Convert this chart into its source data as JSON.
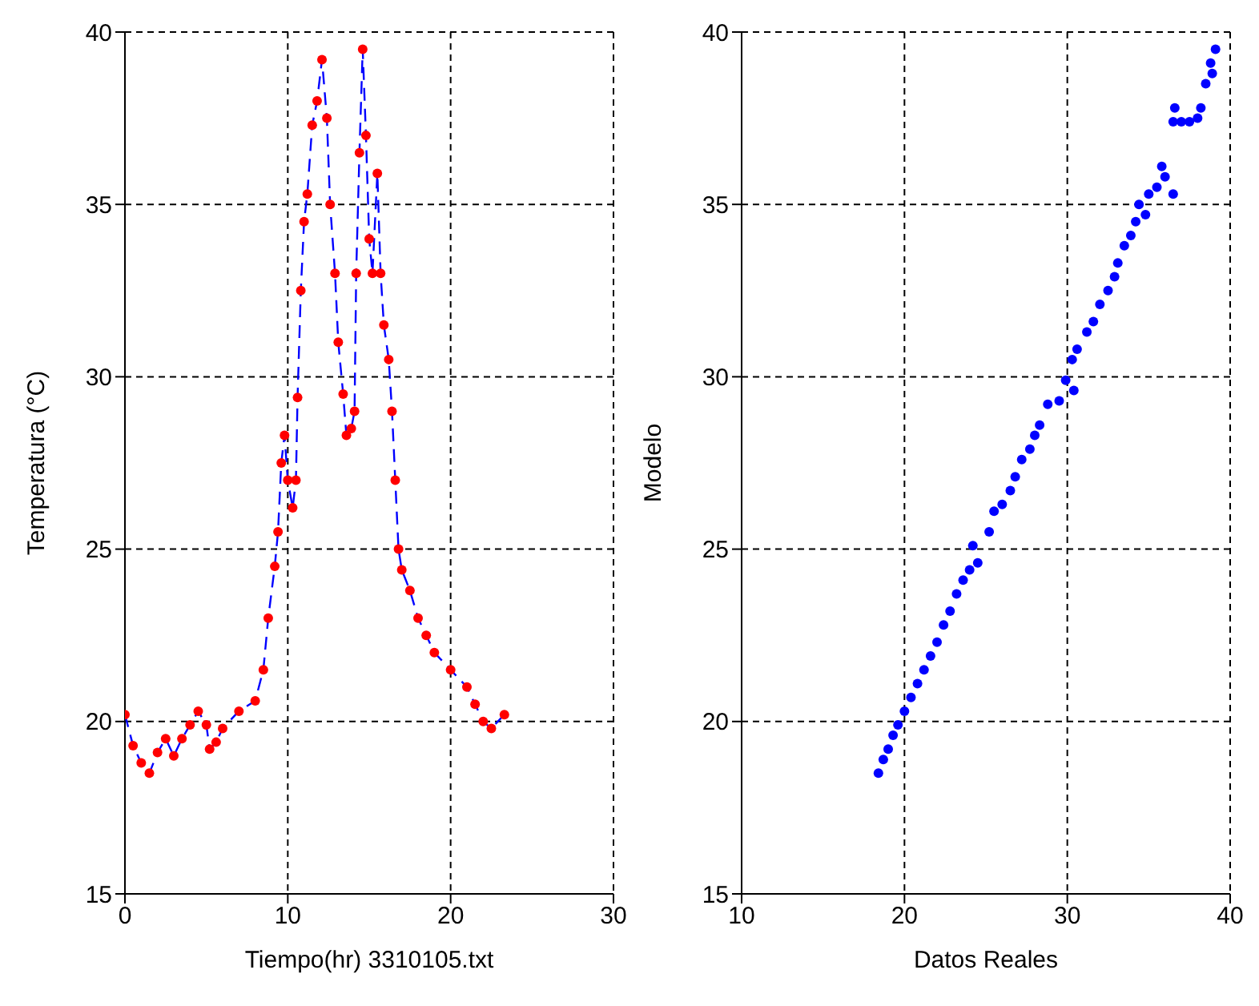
{
  "chart_data": [
    {
      "type": "scatter",
      "xlabel": "Tiempo(hr) 3310105.txt",
      "ylabel": "Temperatura      (°C)",
      "xlim": [
        0,
        30
      ],
      "xticks": [
        0,
        10,
        20,
        30
      ],
      "ylim": [
        15,
        40
      ],
      "yticks": [
        15,
        20,
        25,
        30,
        35,
        40
      ],
      "grid": true,
      "legend": false,
      "series": [
        {
          "type": "line",
          "color": "#0000ff",
          "line_style": "dashed",
          "marker": "none",
          "x": [
            0,
            0.5,
            1,
            1.5,
            2,
            2.5,
            3,
            3.5,
            4,
            4.5,
            5,
            5.2,
            5.6,
            6,
            7,
            8,
            8.5,
            8.8,
            9.2,
            9.4,
            9.6,
            9.8,
            10,
            10.3,
            10.5,
            10.6,
            10.8,
            11,
            11.2,
            11.5,
            11.8,
            12.1,
            12.4,
            12.6,
            12.9,
            13.1,
            13.4,
            13.6,
            13.9,
            14.1,
            14.2,
            14.4,
            14.6,
            14.8,
            15,
            15.2,
            15.5,
            15.7,
            15.9,
            16.2,
            16.4,
            16.6,
            16.8,
            17,
            17.5,
            18,
            18.5,
            19,
            20,
            21,
            21.5,
            22,
            22.5,
            23.3
          ],
          "values": [
            20.2,
            19.3,
            18.8,
            18.5,
            19.1,
            19.5,
            19.0,
            19.5,
            19.9,
            20.3,
            19.9,
            19.2,
            19.4,
            19.8,
            20.3,
            20.6,
            21.5,
            23,
            24.5,
            25.5,
            27.5,
            28.3,
            27,
            26.2,
            27,
            29.4,
            32.5,
            34.5,
            35.3,
            37.3,
            38,
            39.2,
            37.5,
            35,
            33,
            31,
            29.5,
            28.3,
            28.5,
            29,
            33,
            36.5,
            39.5,
            37,
            34,
            33,
            35.9,
            33,
            31.5,
            30.5,
            29,
            27,
            25,
            24.4,
            23.8,
            23,
            22.5,
            22,
            21.5,
            21,
            20.5,
            20,
            19.8,
            20.2
          ]
        },
        {
          "color": "#ff0000",
          "marker": "circle",
          "x": [
            0,
            0.5,
            1,
            1.5,
            2,
            2.5,
            3,
            3.5,
            4,
            4.5,
            5,
            5.2,
            5.6,
            6,
            7,
            8,
            8.5,
            8.8,
            9.2,
            9.4,
            9.6,
            9.8,
            10,
            10.3,
            10.5,
            10.6,
            10.8,
            11,
            11.2,
            11.5,
            11.8,
            12.1,
            12.4,
            12.6,
            12.9,
            13.1,
            13.4,
            13.6,
            13.9,
            14.1,
            14.2,
            14.4,
            14.6,
            14.8,
            15,
            15.2,
            15.5,
            15.7,
            15.9,
            16.2,
            16.4,
            16.6,
            16.8,
            17,
            17.5,
            18,
            18.5,
            19,
            20,
            21,
            21.5,
            22,
            22.5,
            23.3
          ],
          "values": [
            20.2,
            19.3,
            18.8,
            18.5,
            19.1,
            19.5,
            19.0,
            19.5,
            19.9,
            20.3,
            19.9,
            19.2,
            19.4,
            19.8,
            20.3,
            20.6,
            21.5,
            23,
            24.5,
            25.5,
            27.5,
            28.3,
            27,
            26.2,
            27,
            29.4,
            32.5,
            34.5,
            35.3,
            37.3,
            38,
            39.2,
            37.5,
            35,
            33,
            31,
            29.5,
            28.3,
            28.5,
            29,
            33,
            36.5,
            39.5,
            37,
            34,
            33,
            35.9,
            33,
            31.5,
            30.5,
            29,
            27,
            25,
            24.4,
            23.8,
            23,
            22.5,
            22,
            21.5,
            21,
            20.5,
            20,
            19.8,
            20.2
          ]
        }
      ]
    },
    {
      "type": "scatter",
      "xlabel": "Datos Reales",
      "ylabel": "Modelo",
      "xlim": [
        10,
        40
      ],
      "xticks": [
        10,
        20,
        30,
        40
      ],
      "ylim": [
        15,
        40
      ],
      "yticks": [
        15,
        20,
        25,
        30,
        35,
        40
      ],
      "grid": true,
      "legend": false,
      "series": [
        {
          "color": "#0000ff",
          "marker": "circle",
          "x": [
            18.4,
            18.7,
            19,
            19.3,
            19.6,
            20,
            20.4,
            20.8,
            21.2,
            21.6,
            22,
            22.4,
            22.8,
            23.2,
            23.6,
            24,
            24.5,
            24.2,
            25.2,
            25.5,
            26,
            26.5,
            26.8,
            27.2,
            27.7,
            28,
            28.3,
            28.8,
            29.5,
            29.9,
            30.3,
            30.4,
            30.6,
            31.2,
            31.6,
            32,
            32.5,
            32.9,
            33.1,
            33.5,
            33.9,
            34.2,
            34.4,
            34.8,
            35,
            35.5,
            36,
            35.8,
            36.5,
            36.5,
            36.6,
            37,
            37.5,
            38,
            38.2,
            38.5,
            38.9,
            38.8,
            39.1
          ],
          "values": [
            18.5,
            18.9,
            19.2,
            19.6,
            19.9,
            20.3,
            20.7,
            21.1,
            21.5,
            21.9,
            22.3,
            22.8,
            23.2,
            23.7,
            24.1,
            24.4,
            24.6,
            25.1,
            25.5,
            26.1,
            26.3,
            26.7,
            27.1,
            27.6,
            27.9,
            28.3,
            28.6,
            29.2,
            29.3,
            29.9,
            30.5,
            29.6,
            30.8,
            31.3,
            31.6,
            32.1,
            32.5,
            32.9,
            33.3,
            33.8,
            34.1,
            34.5,
            35,
            34.7,
            35.3,
            35.5,
            35.8,
            36.1,
            35.3,
            37.4,
            37.8,
            37.4,
            37.4,
            37.5,
            37.8,
            38.5,
            38.8,
            39.1,
            39.5
          ]
        }
      ]
    }
  ]
}
